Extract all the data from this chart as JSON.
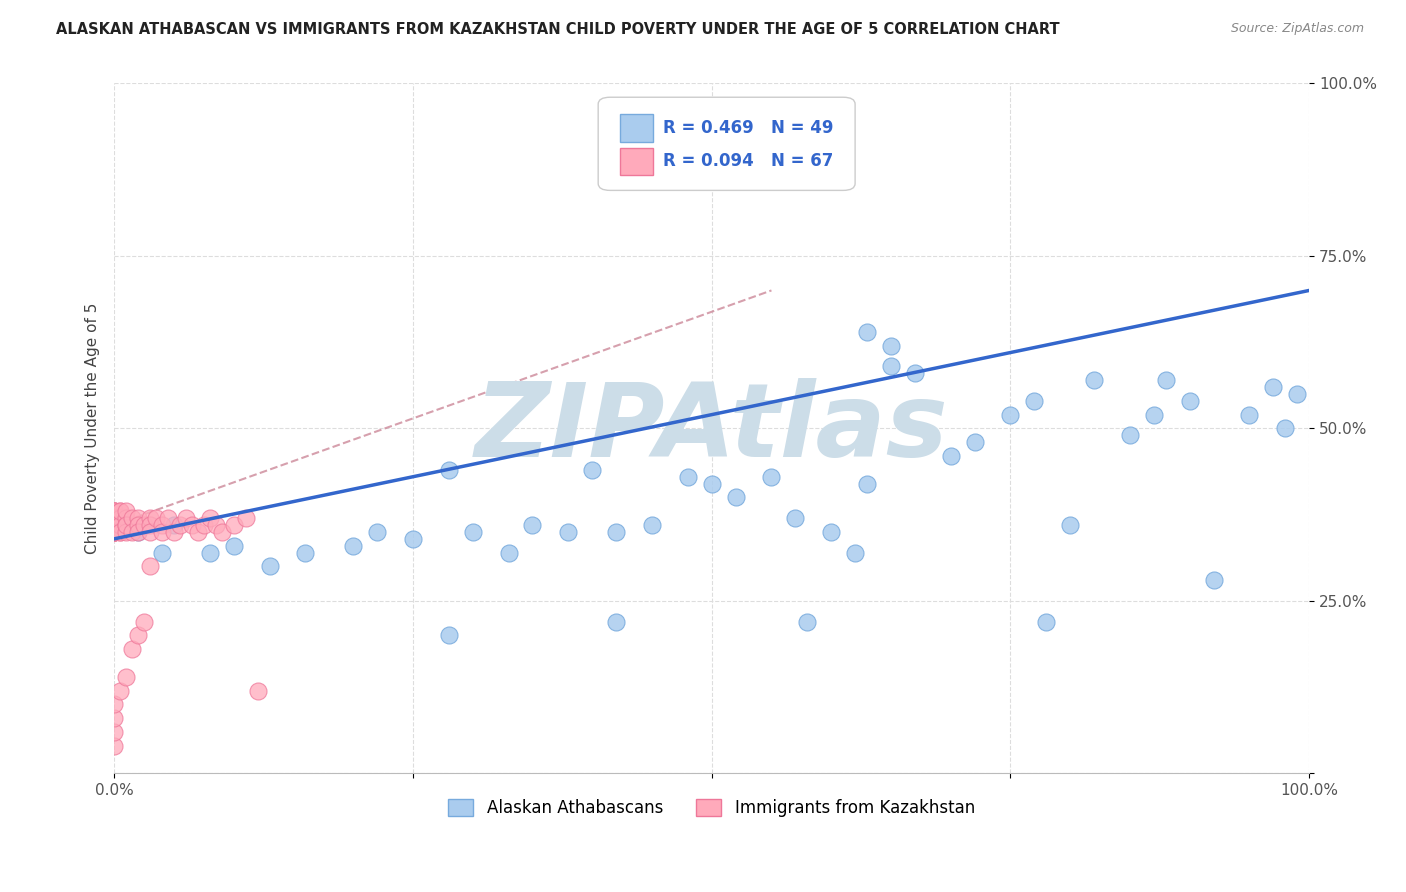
{
  "title": "ALASKAN ATHABASCAN VS IMMIGRANTS FROM KAZAKHSTAN CHILD POVERTY UNDER THE AGE OF 5 CORRELATION CHART",
  "source": "Source: ZipAtlas.com",
  "ylabel": "Child Poverty Under the Age of 5",
  "xlim": [
    0,
    1.0
  ],
  "ylim": [
    0,
    1.0
  ],
  "blue_R": 0.469,
  "blue_N": 49,
  "pink_R": 0.094,
  "pink_N": 67,
  "blue_label": "Alaskan Athabascans",
  "pink_label": "Immigrants from Kazakhstan",
  "blue_color": "#aaccee",
  "blue_edge": "#77aadd",
  "pink_color": "#ffaabb",
  "pink_edge": "#ee7799",
  "trend_blue_color": "#3366cc",
  "trend_pink_color": "#cc8899",
  "watermark": "ZIPAtlas",
  "watermark_color": "#ccdde8",
  "background": "#ffffff",
  "grid_color": "#dddddd",
  "blue_x": [
    0.02,
    0.04,
    0.05,
    0.08,
    0.1,
    0.13,
    0.16,
    0.2,
    0.22,
    0.25,
    0.28,
    0.3,
    0.33,
    0.35,
    0.38,
    0.4,
    0.42,
    0.45,
    0.48,
    0.5,
    0.52,
    0.55,
    0.57,
    0.6,
    0.62,
    0.63,
    0.65,
    0.67,
    0.7,
    0.72,
    0.75,
    0.77,
    0.8,
    0.82,
    0.85,
    0.87,
    0.88,
    0.9,
    0.92,
    0.95,
    0.97,
    0.98,
    0.99,
    0.63,
    0.65,
    0.28,
    0.42,
    0.58,
    0.78
  ],
  "blue_y": [
    0.35,
    0.32,
    0.36,
    0.32,
    0.33,
    0.3,
    0.32,
    0.33,
    0.35,
    0.34,
    0.44,
    0.35,
    0.32,
    0.36,
    0.35,
    0.44,
    0.35,
    0.36,
    0.43,
    0.42,
    0.4,
    0.43,
    0.37,
    0.35,
    0.32,
    0.42,
    0.62,
    0.58,
    0.46,
    0.48,
    0.52,
    0.54,
    0.36,
    0.57,
    0.49,
    0.52,
    0.57,
    0.54,
    0.28,
    0.52,
    0.56,
    0.5,
    0.55,
    0.64,
    0.59,
    0.2,
    0.22,
    0.22,
    0.22
  ],
  "pink_x": [
    0.0,
    0.0,
    0.0,
    0.0,
    0.0,
    0.0,
    0.0,
    0.0,
    0.0,
    0.0,
    0.0,
    0.0,
    0.0,
    0.0,
    0.0,
    0.0,
    0.0,
    0.0,
    0.0,
    0.0,
    0.005,
    0.005,
    0.005,
    0.005,
    0.005,
    0.005,
    0.005,
    0.01,
    0.01,
    0.01,
    0.01,
    0.01,
    0.015,
    0.015,
    0.02,
    0.02,
    0.02,
    0.025,
    0.03,
    0.03,
    0.03,
    0.035,
    0.04,
    0.04,
    0.045,
    0.05,
    0.055,
    0.06,
    0.065,
    0.07,
    0.075,
    0.08,
    0.085,
    0.09,
    0.1,
    0.11,
    0.12,
    0.0,
    0.0,
    0.0,
    0.0,
    0.005,
    0.01,
    0.015,
    0.02,
    0.025,
    0.03
  ],
  "pink_y": [
    0.38,
    0.36,
    0.35,
    0.37,
    0.36,
    0.38,
    0.37,
    0.36,
    0.35,
    0.37,
    0.36,
    0.38,
    0.35,
    0.37,
    0.36,
    0.35,
    0.38,
    0.37,
    0.36,
    0.35,
    0.38,
    0.36,
    0.35,
    0.37,
    0.36,
    0.35,
    0.38,
    0.37,
    0.36,
    0.35,
    0.38,
    0.36,
    0.37,
    0.35,
    0.37,
    0.36,
    0.35,
    0.36,
    0.37,
    0.36,
    0.35,
    0.37,
    0.36,
    0.35,
    0.37,
    0.35,
    0.36,
    0.37,
    0.36,
    0.35,
    0.36,
    0.37,
    0.36,
    0.35,
    0.36,
    0.37,
    0.12,
    0.04,
    0.06,
    0.08,
    0.1,
    0.12,
    0.14,
    0.18,
    0.2,
    0.22,
    0.3
  ],
  "blue_trendline": [
    0.34,
    0.7
  ],
  "pink_trendline_x": [
    0.0,
    0.55
  ],
  "pink_trendline_y": [
    0.36,
    0.7
  ]
}
